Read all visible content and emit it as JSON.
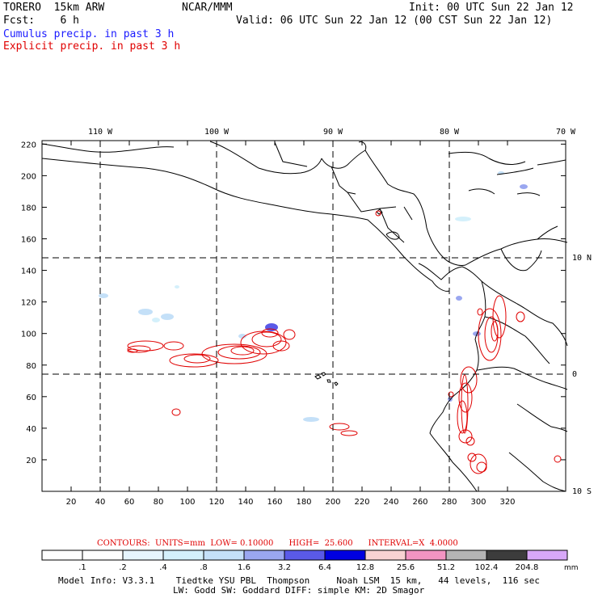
{
  "header": {
    "model": "TORERO  15km ARW",
    "org": "NCAR/MMM",
    "init": "Init: 00 UTC Sun 22 Jan 12",
    "fcst": "Fcst:    6 h",
    "valid": "Valid: 06 UTC Sun 22 Jan 12 (00 CST Sun 22 Jan 12)",
    "cumulus": "Cumulus precip. in past 3 h",
    "explicit": "Explicit precip. in past 3 h"
  },
  "axes": {
    "top_lon": [
      "110 W",
      "100 W",
      "90 W",
      "80 W",
      "70 W"
    ],
    "right_lat": [
      "10 N",
      "0",
      "10 S"
    ],
    "x_ticks": [
      "20",
      "40",
      "60",
      "80",
      "100",
      "120",
      "140",
      "160",
      "180",
      "200",
      "220",
      "240",
      "260",
      "280",
      "300",
      "320"
    ],
    "y_ticks": [
      "20",
      "40",
      "60",
      "80",
      "100",
      "120",
      "140",
      "160",
      "180",
      "200",
      "220"
    ]
  },
  "contours": {
    "label": "CONTOURS:  UNITS=mm  LOW= 0.10000      HIGH=  25.600      INTERVAL=X  4.0000"
  },
  "colorbar": {
    "labels": [
      ".1",
      ".2",
      ".4",
      ".8",
      "1.6",
      "3.2",
      "6.4",
      "12.8",
      "25.6",
      "51.2",
      "102.4",
      "204.8"
    ],
    "unit": "mm",
    "colors": [
      "#ffffff",
      "#ffffff",
      "#e6f5ff",
      "#d4f0fb",
      "#c4e0f8",
      "#9aa7f0",
      "#5a5ae8",
      "#0000e0",
      "#f8d2d2",
      "#f294c2",
      "#b4b4b4",
      "#3c3c3c",
      "#d8a8f8"
    ]
  },
  "footer": {
    "line1": "Model Info: V3.3.1    Tiedtke YSU PBL  Thompson     Noah LSM  15 km,   44 levels,  116 sec",
    "line2": "LW: Godd SW: Goddard DIFF: simple KM: 2D Smagor"
  }
}
